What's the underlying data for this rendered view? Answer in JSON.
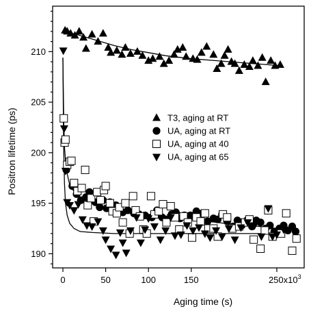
{
  "chart_data": {
    "type": "scatter",
    "title": "",
    "xlabel": "Aging time  (s)",
    "ylabel": "Positron lifetime (ps)",
    "xlim": [
      -12000,
      282000
    ],
    "ylim": [
      188.6,
      214.5
    ],
    "x_ticks": [
      {
        "value": 0,
        "label": "0"
      },
      {
        "value": 50000,
        "label": "50"
      },
      {
        "value": 100000,
        "label": "100"
      },
      {
        "value": 150000,
        "label": "150"
      },
      {
        "value": 250000,
        "label": "250x10",
        "sup": "3"
      }
    ],
    "y_ticks": [
      {
        "value": 190,
        "label": "190"
      },
      {
        "value": 195,
        "label": "195"
      },
      {
        "value": 200,
        "label": "200"
      },
      {
        "value": 205,
        "label": "205"
      },
      {
        "value": 210,
        "label": "210"
      }
    ],
    "legend_position": "center-right",
    "series": [
      {
        "name": "T3, aging at RT",
        "marker": "triangle-up",
        "points": [
          [
            2500,
            212.1
          ],
          [
            5000,
            212.0
          ],
          [
            9000,
            211.8
          ],
          [
            14000,
            211.6
          ],
          [
            19000,
            212.0
          ],
          [
            24000,
            211.4
          ],
          [
            27000,
            210.3
          ],
          [
            34000,
            211.7
          ],
          [
            41000,
            211.0
          ],
          [
            47000,
            211.8
          ],
          [
            53000,
            210.4
          ],
          [
            56000,
            209.9
          ],
          [
            63000,
            210.1
          ],
          [
            69000,
            209.7
          ],
          [
            73000,
            210.4
          ],
          [
            79000,
            209.8
          ],
          [
            87000,
            210.0
          ],
          [
            93000,
            209.6
          ],
          [
            100000,
            209.1
          ],
          [
            105000,
            209.3
          ],
          [
            113000,
            209.5
          ],
          [
            118000,
            208.8
          ],
          [
            124000,
            209.1
          ],
          [
            130000,
            209.7
          ],
          [
            134000,
            210.2
          ],
          [
            140000,
            210.4
          ],
          [
            144000,
            209.5
          ],
          [
            152000,
            209.3
          ],
          [
            157000,
            209.2
          ],
          [
            162000,
            209.9
          ],
          [
            168000,
            210.5
          ],
          [
            176000,
            209.7
          ],
          [
            180000,
            208.3
          ],
          [
            185000,
            208.8
          ],
          [
            189000,
            209.6
          ],
          [
            193000,
            210.2
          ],
          [
            197000,
            209.0
          ],
          [
            201000,
            208.8
          ],
          [
            206000,
            208.1
          ],
          [
            212000,
            208.7
          ],
          [
            218000,
            208.5
          ],
          [
            222000,
            209.1
          ],
          [
            228000,
            208.6
          ],
          [
            233000,
            209.4
          ],
          [
            237000,
            207.0
          ],
          [
            243000,
            209.1
          ],
          [
            248000,
            208.6
          ],
          [
            254000,
            208.7
          ]
        ]
      },
      {
        "name": "UA, aging at RT",
        "marker": "circle-filled",
        "points": [
          [
            4000,
            198.3
          ],
          [
            11000,
            196.7
          ],
          [
            16000,
            195.9
          ],
          [
            21000,
            195.3
          ],
          [
            27000,
            195.6
          ],
          [
            31000,
            196.1
          ],
          [
            38000,
            195.1
          ],
          [
            43000,
            194.6
          ],
          [
            47000,
            195.3
          ],
          [
            51000,
            194.5
          ],
          [
            55000,
            195.1
          ],
          [
            62000,
            194.8
          ],
          [
            70000,
            194.1
          ],
          [
            76000,
            194.3
          ],
          [
            83000,
            194.0
          ],
          [
            89000,
            193.9
          ],
          [
            96000,
            193.8
          ],
          [
            104000,
            193.6
          ],
          [
            110000,
            194.3
          ],
          [
            116000,
            193.6
          ],
          [
            121000,
            193.4
          ],
          [
            127000,
            193.9
          ],
          [
            132000,
            194.1
          ],
          [
            137000,
            193.5
          ],
          [
            142000,
            193.8
          ],
          [
            149000,
            193.8
          ],
          [
            156000,
            194.2
          ],
          [
            163000,
            194.0
          ],
          [
            169000,
            193.2
          ],
          [
            176000,
            193.5
          ],
          [
            181000,
            193.4
          ],
          [
            186000,
            193.9
          ],
          [
            192000,
            193.2
          ],
          [
            199000,
            192.7
          ],
          [
            204000,
            193.3
          ],
          [
            209000,
            192.8
          ],
          [
            215000,
            193.3
          ],
          [
            221000,
            192.7
          ],
          [
            226000,
            193.3
          ],
          [
            231000,
            193.1
          ],
          [
            237000,
            192.5
          ],
          [
            242000,
            192.8
          ],
          [
            247000,
            192.2
          ],
          [
            253000,
            192.5
          ],
          [
            258000,
            192.8
          ],
          [
            263000,
            192.3
          ],
          [
            268000,
            192.7
          ],
          [
            272000,
            192.2
          ]
        ]
      },
      {
        "name": "UA, aging at 40",
        "marker": "square-open",
        "points": [
          [
            1000,
            203.4
          ],
          [
            2000,
            201.0
          ],
          [
            3000,
            201.3
          ],
          [
            5000,
            198.8
          ],
          [
            8000,
            199.1
          ],
          [
            10000,
            199.2
          ],
          [
            13000,
            197.0
          ],
          [
            17000,
            196.2
          ],
          [
            22000,
            196.5
          ],
          [
            26000,
            198.3
          ],
          [
            29000,
            194.8
          ],
          [
            33000,
            195.5
          ],
          [
            36000,
            193.2
          ],
          [
            40000,
            196.1
          ],
          [
            44000,
            195.3
          ],
          [
            48000,
            196.3
          ],
          [
            50000,
            196.7
          ],
          [
            55000,
            195.0
          ],
          [
            58000,
            194.2
          ],
          [
            63000,
            194.0
          ],
          [
            66000,
            194.6
          ],
          [
            70000,
            193.1
          ],
          [
            73000,
            195.0
          ],
          [
            78000,
            192.0
          ],
          [
            82000,
            195.7
          ],
          [
            85000,
            194.3
          ],
          [
            90000,
            193.7
          ],
          [
            94000,
            192.4
          ],
          [
            98000,
            192.0
          ],
          [
            103000,
            195.7
          ],
          [
            107000,
            193.9
          ],
          [
            112000,
            194.2
          ],
          [
            117000,
            194.9
          ],
          [
            121000,
            193.1
          ],
          [
            126000,
            194.7
          ],
          [
            131000,
            193.6
          ],
          [
            136000,
            192.4
          ],
          [
            141000,
            193.7
          ],
          [
            146000,
            193.1
          ],
          [
            151000,
            191.6
          ],
          [
            156000,
            193.6
          ],
          [
            161000,
            193.2
          ],
          [
            166000,
            194.0
          ],
          [
            170000,
            192.5
          ],
          [
            176000,
            192.5
          ],
          [
            181000,
            191.7
          ],
          [
            187000,
            193.9
          ],
          [
            192000,
            193.6
          ],
          [
            198000,
            192.5
          ],
          [
            206000,
            192.7
          ],
          [
            213000,
            193.1
          ],
          [
            218000,
            193.4
          ],
          [
            223000,
            191.4
          ],
          [
            231000,
            190.5
          ],
          [
            236000,
            192.3
          ],
          [
            240000,
            194.3
          ],
          [
            245000,
            191.7
          ],
          [
            255000,
            192.0
          ],
          [
            261000,
            194.0
          ],
          [
            268000,
            190.3
          ],
          [
            273000,
            191.5
          ]
        ]
      },
      {
        "name": "UA, aging at 65",
        "marker": "triangle-down",
        "points": [
          [
            500,
            210.1
          ],
          [
            1500,
            202.4
          ],
          [
            3000,
            198.2
          ],
          [
            5000,
            195.1
          ],
          [
            8000,
            194.8
          ],
          [
            13000,
            194.3
          ],
          [
            18000,
            194.9
          ],
          [
            23000,
            193.4
          ],
          [
            28000,
            192.8
          ],
          [
            34000,
            192.7
          ],
          [
            41000,
            193.2
          ],
          [
            47000,
            192.3
          ],
          [
            50000,
            191.4
          ],
          [
            56000,
            190.5
          ],
          [
            62000,
            189.9
          ],
          [
            67000,
            192.1
          ],
          [
            70000,
            191.1
          ],
          [
            74000,
            190.1
          ],
          [
            79000,
            192.3
          ],
          [
            86000,
            193.6
          ],
          [
            91000,
            191.1
          ],
          [
            96000,
            192.4
          ],
          [
            100000,
            193.5
          ],
          [
            107000,
            192.7
          ],
          [
            114000,
            191.4
          ],
          [
            120000,
            192.3
          ],
          [
            126000,
            193.6
          ],
          [
            131000,
            191.8
          ],
          [
            138000,
            191.9
          ],
          [
            145000,
            192.8
          ],
          [
            152000,
            192.3
          ],
          [
            159000,
            192.6
          ],
          [
            166000,
            192.0
          ],
          [
            172000,
            191.6
          ],
          [
            179000,
            192.3
          ],
          [
            186000,
            191.7
          ],
          [
            194000,
            192.5
          ],
          [
            201000,
            191.4
          ],
          [
            208000,
            192.6
          ],
          [
            216000,
            193.1
          ],
          [
            224000,
            192.8
          ],
          [
            232000,
            191.7
          ],
          [
            240000,
            194.5
          ],
          [
            245000,
            191.7
          ],
          [
            250000,
            191.9
          ],
          [
            258000,
            192.4
          ]
        ]
      }
    ],
    "fit_curves": [
      {
        "series": "T3, aging at RT",
        "points": [
          [
            2500,
            212.0
          ],
          [
            20000,
            211.6
          ],
          [
            40000,
            211.1
          ],
          [
            60000,
            210.6
          ],
          [
            80000,
            210.2
          ],
          [
            100000,
            209.9
          ],
          [
            120000,
            209.6
          ],
          [
            150000,
            209.3
          ],
          [
            180000,
            209.1
          ],
          [
            210000,
            208.9
          ],
          [
            240000,
            208.7
          ],
          [
            254000,
            208.6
          ]
        ]
      },
      {
        "series": "UA, aging at 40 / UA, aging at RT",
        "points": [
          [
            0,
            209.4
          ],
          [
            1000,
            203.0
          ],
          [
            2000,
            200.4
          ],
          [
            4000,
            198.3
          ],
          [
            8000,
            196.8
          ],
          [
            15000,
            195.9
          ],
          [
            30000,
            195.1
          ],
          [
            50000,
            194.6
          ],
          [
            75000,
            194.2
          ],
          [
            100000,
            193.9
          ],
          [
            130000,
            193.6
          ],
          [
            160000,
            193.3
          ],
          [
            190000,
            193.0
          ],
          [
            220000,
            192.8
          ],
          [
            250000,
            192.5
          ],
          [
            275000,
            192.3
          ]
        ]
      },
      {
        "series": "UA, aging at 65",
        "points": [
          [
            0,
            209.4
          ],
          [
            800,
            201.0
          ],
          [
            1800,
            197.0
          ],
          [
            3000,
            195.0
          ],
          [
            5000,
            193.8
          ],
          [
            8000,
            193.0
          ],
          [
            13000,
            192.5
          ],
          [
            20000,
            192.2
          ],
          [
            35000,
            192.1
          ],
          [
            60000,
            192.0
          ],
          [
            100000,
            192.0
          ],
          [
            160000,
            192.0
          ],
          [
            220000,
            192.0
          ],
          [
            258000,
            192.0
          ]
        ]
      }
    ]
  }
}
